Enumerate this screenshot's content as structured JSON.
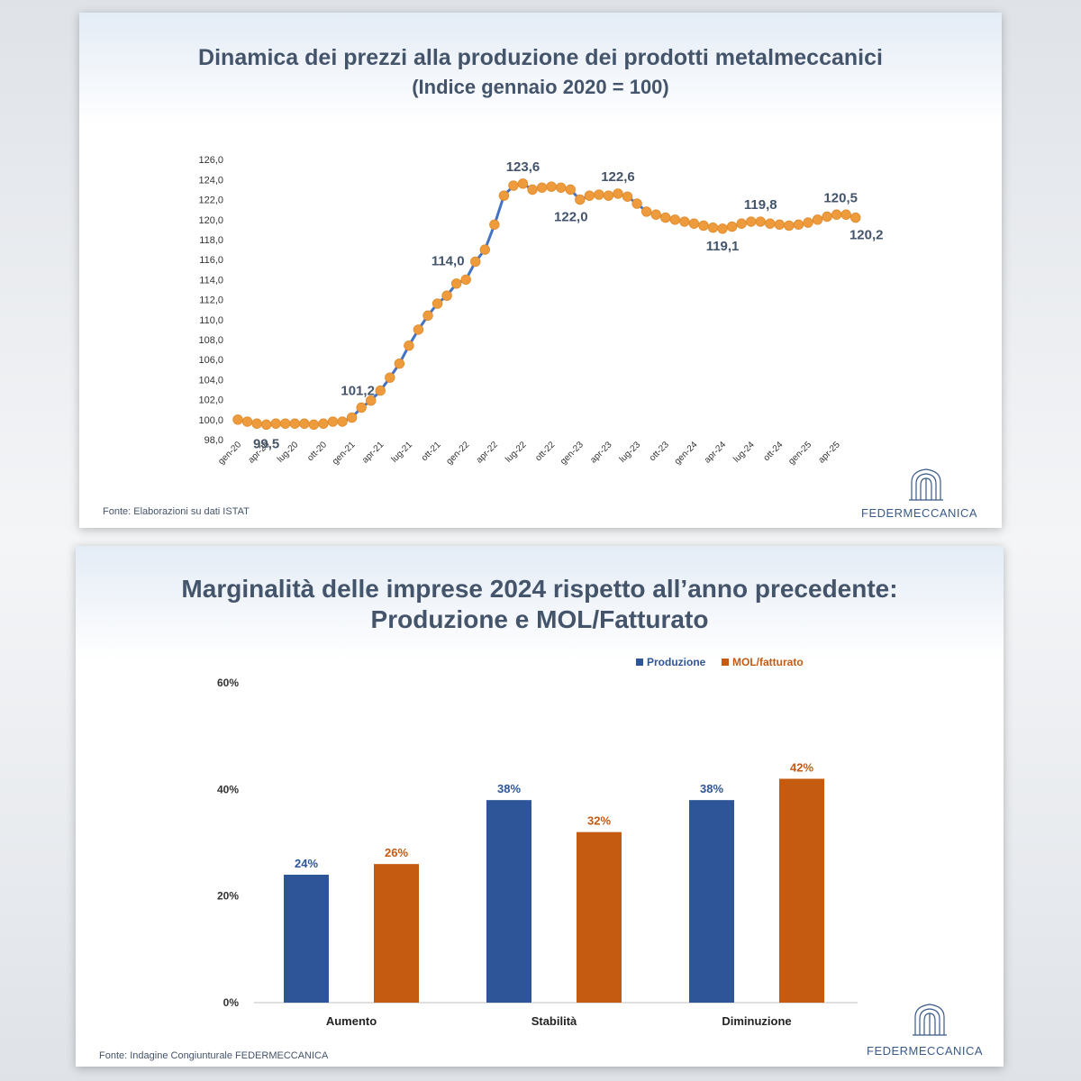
{
  "colors": {
    "title": "#44546a",
    "line": "#4472c4",
    "marker": "#ed9b3c",
    "produzione": "#2e5597",
    "mol": "#c55a11",
    "brand": "#3a5a8a"
  },
  "slide1": {
    "title": "Dinamica dei prezzi alla produzione dei prodotti metalmeccanici",
    "subtitle": "(Indice gennaio 2020 = 100)",
    "source": "Fonte: Elaborazioni su dati ISTAT",
    "brand": "FEDERMECCANICA",
    "logo_icon": "federmeccanica-logo-icon"
  },
  "slide2": {
    "title": "Marginalità delle imprese 2024 rispetto all’anno precedente:",
    "subtitle": "Produzione e MOL/Fatturato",
    "source": "Fonte: Indagine Congiunturale FEDERMECCANICA",
    "brand": "FEDERMECCANICA",
    "logo_icon": "federmeccanica-logo-icon"
  },
  "chart_data": [
    {
      "type": "line",
      "title": "Dinamica dei prezzi alla produzione dei prodotti metalmeccanici",
      "subtitle": "(Indice gennaio 2020 = 100)",
      "ylim": [
        98,
        126
      ],
      "yticks": [
        "98,0",
        "100,0",
        "102,0",
        "104,0",
        "106,0",
        "108,0",
        "110,0",
        "112,0",
        "114,0",
        "116,0",
        "118,0",
        "120,0",
        "122,0",
        "124,0",
        "126,0"
      ],
      "xtick_labels": [
        "gen-20",
        "apr-20",
        "lug-20",
        "ott-20",
        "gen-21",
        "apr-21",
        "lug-21",
        "ott-21",
        "gen-22",
        "apr-22",
        "lug-22",
        "ott-22",
        "gen-23",
        "apr-23",
        "lug-23",
        "ott-23",
        "gen-24",
        "apr-24",
        "lug-24",
        "ott-24",
        "gen-25",
        "apr-25"
      ],
      "x": [
        "gen-20",
        "feb-20",
        "mar-20",
        "apr-20",
        "mag-20",
        "giu-20",
        "lug-20",
        "ago-20",
        "set-20",
        "ott-20",
        "nov-20",
        "dic-20",
        "gen-21",
        "feb-21",
        "mar-21",
        "apr-21",
        "mag-21",
        "giu-21",
        "lug-21",
        "ago-21",
        "set-21",
        "ott-21",
        "nov-21",
        "dic-21",
        "gen-22",
        "feb-22",
        "mar-22",
        "apr-22",
        "mag-22",
        "giu-22",
        "lug-22",
        "ago-22",
        "set-22",
        "ott-22",
        "nov-22",
        "dic-22",
        "gen-23",
        "feb-23",
        "mar-23",
        "apr-23",
        "mag-23",
        "giu-23",
        "lug-23",
        "ago-23",
        "set-23",
        "ott-23",
        "nov-23",
        "dic-23",
        "gen-24",
        "feb-24",
        "mar-24",
        "apr-24",
        "mag-24",
        "giu-24",
        "lug-24",
        "ago-24",
        "set-24",
        "ott-24",
        "nov-24",
        "dic-24",
        "gen-25",
        "feb-25",
        "mar-25",
        "apr-25",
        "mag-25",
        "giu-25"
      ],
      "values": [
        100.0,
        99.8,
        99.6,
        99.5,
        99.6,
        99.6,
        99.6,
        99.6,
        99.5,
        99.6,
        99.8,
        99.8,
        100.2,
        101.2,
        101.9,
        102.9,
        104.2,
        105.6,
        107.4,
        109.0,
        110.4,
        111.6,
        112.4,
        113.6,
        114.0,
        115.8,
        117.0,
        119.5,
        122.4,
        123.4,
        123.6,
        123.0,
        123.2,
        123.3,
        123.2,
        123.0,
        122.0,
        122.4,
        122.5,
        122.4,
        122.6,
        122.3,
        121.6,
        120.8,
        120.5,
        120.2,
        120.0,
        119.8,
        119.6,
        119.4,
        119.2,
        119.1,
        119.3,
        119.6,
        119.8,
        119.8,
        119.6,
        119.5,
        119.4,
        119.5,
        119.7,
        120.0,
        120.3,
        120.5,
        120.5,
        120.2
      ],
      "annotations": [
        {
          "label": "99,5",
          "x": "apr-20",
          "value": 99.5
        },
        {
          "label": "101,2",
          "x": "feb-21",
          "value": 101.2
        },
        {
          "label": "114,0",
          "x": "gen-22",
          "value": 114.0
        },
        {
          "label": "123,6",
          "x": "lug-22",
          "value": 123.6
        },
        {
          "label": "122,0",
          "x": "gen-23",
          "value": 122.0
        },
        {
          "label": "122,6",
          "x": "mag-23",
          "value": 122.6
        },
        {
          "label": "119,1",
          "x": "apr-24",
          "value": 119.1
        },
        {
          "label": "119,8",
          "x": "ago-24",
          "value": 119.8
        },
        {
          "label": "120,5",
          "x": "mag-25",
          "value": 120.5
        },
        {
          "label": "120,2",
          "x": "giu-25",
          "value": 120.2
        }
      ],
      "grid": false
    },
    {
      "type": "bar",
      "title": "Marginalità delle imprese 2024 rispetto all’anno precedente:",
      "subtitle": "Produzione e MOL/Fatturato",
      "categories": [
        "Aumento",
        "Stabilità",
        "Diminuzione"
      ],
      "series": [
        {
          "name": "Produzione",
          "values": [
            24,
            38,
            38
          ],
          "labels": [
            "24%",
            "38%",
            "38%"
          ]
        },
        {
          "name": "MOL/fatturato",
          "values": [
            26,
            32,
            42
          ],
          "labels": [
            "26%",
            "32%",
            "42%"
          ]
        }
      ],
      "ylim": [
        0,
        60
      ],
      "yticks": [
        "0%",
        "20%",
        "40%",
        "60%"
      ],
      "legend": "top-right",
      "grid": false
    }
  ]
}
